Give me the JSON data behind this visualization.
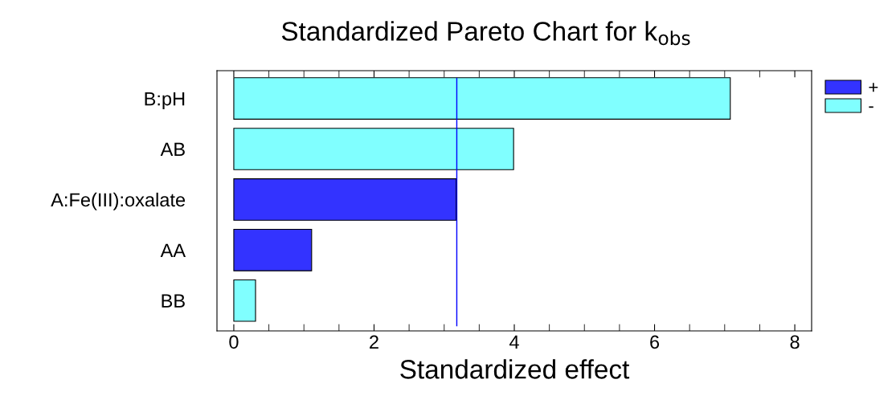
{
  "chart_data": {
    "type": "bar",
    "orientation": "horizontal",
    "title": "Standardized Pareto Chart for k$_{obs}$",
    "xlabel": "Standardized effect",
    "categories": [
      "B:pH",
      "AB",
      "A:Fe(III):oxalate",
      "AA",
      "BB"
    ],
    "series": [
      {
        "name": "+",
        "color": "#3333ff",
        "values": [
          null,
          null,
          3.17,
          1.11,
          null
        ]
      },
      {
        "name": "-",
        "color": "#80ffff",
        "values": [
          7.08,
          3.99,
          null,
          null,
          0.31
        ]
      }
    ],
    "xlim": [
      -0.24,
      8.24
    ],
    "xticks": [
      0,
      2,
      4,
      6,
      8
    ],
    "ref_lines": [
      {
        "axis": "x",
        "value": 3.18,
        "color": "#0000ff"
      }
    ],
    "legend": "top right",
    "grid": false
  }
}
